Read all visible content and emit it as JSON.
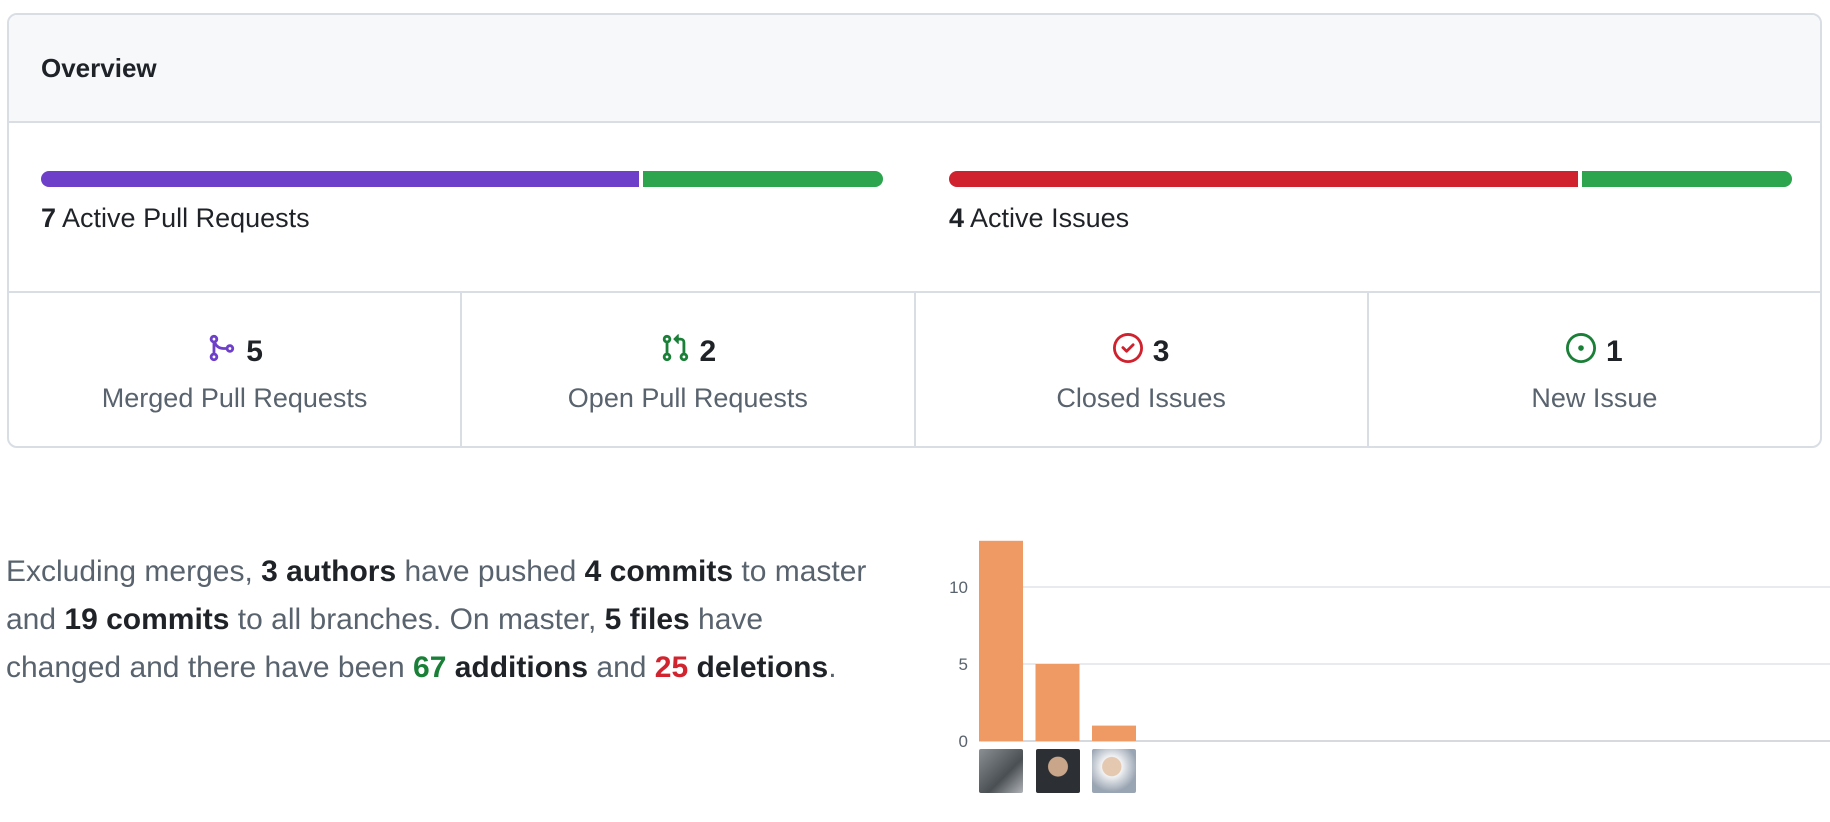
{
  "overview": {
    "title": "Overview",
    "pull_requests": {
      "count": "7",
      "label": "Active Pull Requests",
      "merged_fraction": 0.714,
      "open_fraction": 0.286
    },
    "issues": {
      "count": "4",
      "label": "Active Issues",
      "closed_fraction": 0.75,
      "new_fraction": 0.25
    },
    "stats": [
      {
        "value": "5",
        "label": "Merged Pull Requests",
        "icon": "git-merge-icon",
        "color": "#6e40c9"
      },
      {
        "value": "2",
        "label": "Open Pull Requests",
        "icon": "git-pull-request-icon",
        "color": "#1a7f37"
      },
      {
        "value": "3",
        "label": "Closed Issues",
        "icon": "issue-closed-icon",
        "color": "#cf222e"
      },
      {
        "value": "1",
        "label": "New Issue",
        "icon": "issue-opened-icon",
        "color": "#1a7f37"
      }
    ],
    "colors": {
      "merged": "#6e40c9",
      "open": "#2da44e",
      "closed": "#cf222e",
      "new": "#2da44e"
    }
  },
  "commit_summary": {
    "p1": "Excluding merges, ",
    "authors": "3 authors",
    "p2": " have pushed ",
    "master_commits": "4 commits",
    "p3": " to master and ",
    "all_commits": "19 commits",
    "p4": " to all branches. On master, ",
    "files": "5 files",
    "p5": " have changed and there have been ",
    "additions_count": "67",
    "additions_word": " additions",
    "p6": " and ",
    "deletions_count": "25",
    "deletions_word": " deletions",
    "p7": "."
  },
  "chart_data": {
    "type": "bar",
    "categories": [
      "",
      "",
      ""
    ],
    "values": [
      13,
      5,
      1
    ],
    "y_ticks": [
      "0",
      "5",
      "10"
    ],
    "ylim": [
      0,
      13
    ],
    "grid": true,
    "bar_color": "#ef9a64"
  }
}
